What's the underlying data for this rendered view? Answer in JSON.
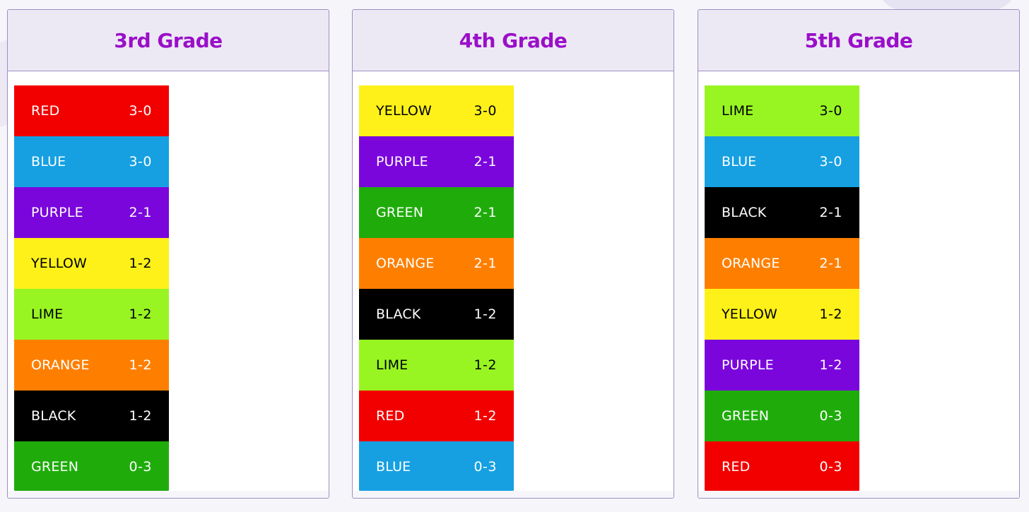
{
  "colors": {
    "RED": {
      "bg": "#f20000",
      "fg": "#ffffff"
    },
    "BLUE": {
      "bg": "#16a0e2",
      "fg": "#ffffff"
    },
    "PURPLE": {
      "bg": "#7a06dc",
      "fg": "#ffffff"
    },
    "YELLOW": {
      "bg": "#fdf119",
      "fg": "#000000"
    },
    "LIME": {
      "bg": "#98f522",
      "fg": "#000000"
    },
    "ORANGE": {
      "bg": "#fe7f00",
      "fg": "#ffffff"
    },
    "BLACK": {
      "bg": "#000000",
      "fg": "#ffffff"
    },
    "GREEN": {
      "bg": "#1fac0b",
      "fg": "#ffffff"
    },
    "title": "#9a0fc9"
  },
  "grades": [
    {
      "title": "3rd Grade",
      "teams": [
        {
          "name": "RED",
          "record": "3-0"
        },
        {
          "name": "BLUE",
          "record": "3-0"
        },
        {
          "name": "PURPLE",
          "record": "2-1"
        },
        {
          "name": "YELLOW",
          "record": "1-2"
        },
        {
          "name": "LIME",
          "record": "1-2"
        },
        {
          "name": "ORANGE",
          "record": "1-2"
        },
        {
          "name": "BLACK",
          "record": "1-2"
        },
        {
          "name": "GREEN",
          "record": "0-3"
        }
      ]
    },
    {
      "title": "4th Grade",
      "teams": [
        {
          "name": "YELLOW",
          "record": "3-0"
        },
        {
          "name": "PURPLE",
          "record": "2-1"
        },
        {
          "name": "GREEN",
          "record": "2-1"
        },
        {
          "name": "ORANGE",
          "record": "2-1"
        },
        {
          "name": "BLACK",
          "record": "1-2"
        },
        {
          "name": "LIME",
          "record": "1-2"
        },
        {
          "name": "RED",
          "record": "1-2"
        },
        {
          "name": "BLUE",
          "record": "0-3"
        }
      ]
    },
    {
      "title": "5th Grade",
      "teams": [
        {
          "name": "LIME",
          "record": "3-0"
        },
        {
          "name": "BLUE",
          "record": "3-0"
        },
        {
          "name": "BLACK",
          "record": "2-1"
        },
        {
          "name": "ORANGE",
          "record": "2-1"
        },
        {
          "name": "YELLOW",
          "record": "1-2"
        },
        {
          "name": "PURPLE",
          "record": "1-2"
        },
        {
          "name": "GREEN",
          "record": "0-3"
        },
        {
          "name": "RED",
          "record": "0-3"
        }
      ]
    }
  ]
}
